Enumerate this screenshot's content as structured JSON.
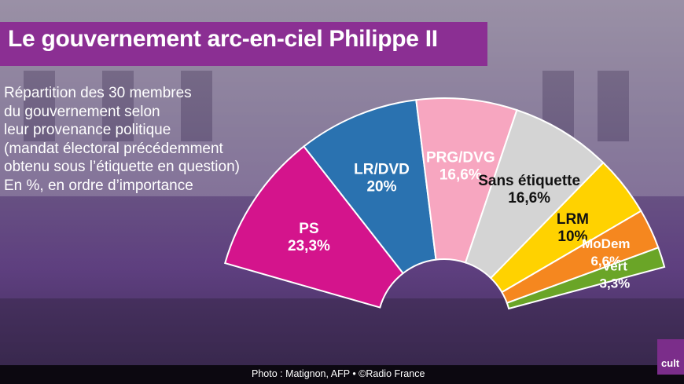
{
  "title": "Le gouvernement arc-en-ciel Philippe II",
  "description": [
    "Répartition des 30 membres",
    "du gouvernement selon",
    "leur provenance politique",
    "(mandat électoral précédemment",
    "obtenu sous l’étiquette en question)",
    "En %, en ordre d’importance"
  ],
  "credit": "Photo : Matignon, AFP • ©Radio France",
  "logo_text": "cult",
  "chart_data": {
    "type": "pie",
    "variant": "half-donut",
    "unit": "%",
    "slices": [
      {
        "label": "PS",
        "value": 23.3,
        "value_label": "23,3%",
        "color": "#d4148c",
        "text_color": "#ffffff"
      },
      {
        "label": "LR/DVD",
        "value": 20,
        "value_label": "20%",
        "color": "#2a72b0",
        "text_color": "#ffffff"
      },
      {
        "label": "PRG/DVG",
        "value": 16.6,
        "value_label": "16,6%",
        "color": "#f7a6c0",
        "text_color": "#ffffff"
      },
      {
        "label": "Sans étiquette",
        "value": 16.6,
        "value_label": "16,6%",
        "color": "#d4d4d4",
        "text_color": "#111111"
      },
      {
        "label": "LRM",
        "value": 10,
        "value_label": "10%",
        "color": "#ffd200",
        "text_color": "#111111"
      },
      {
        "label": "MoDem",
        "value": 6.6,
        "value_label": "6,6%",
        "color": "#f5871f",
        "text_color": "#ffffff"
      },
      {
        "label": "Vert",
        "value": 3.3,
        "value_label": "3,3%",
        "color": "#6aa527",
        "text_color": "#ffffff"
      }
    ]
  }
}
